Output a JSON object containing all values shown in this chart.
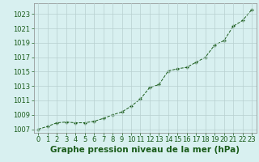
{
  "hours": [
    0,
    1,
    2,
    3,
    4,
    5,
    6,
    7,
    8,
    9,
    10,
    11,
    12,
    13,
    14,
    15,
    16,
    17,
    18,
    19,
    20,
    21,
    22,
    23
  ],
  "pressure": [
    1007.0,
    1007.4,
    1007.9,
    1008.0,
    1007.9,
    1007.9,
    1008.1,
    1008.5,
    1009.0,
    1009.4,
    1010.2,
    1011.2,
    1012.8,
    1013.2,
    1015.1,
    1015.4,
    1015.6,
    1016.3,
    1017.0,
    1018.7,
    1019.3,
    1021.3,
    1022.1,
    1023.6
  ],
  "ylim_min": 1006.5,
  "ylim_max": 1024.5,
  "yticks": [
    1007,
    1009,
    1011,
    1013,
    1015,
    1017,
    1019,
    1021,
    1023
  ],
  "xticks": [
    0,
    1,
    2,
    3,
    4,
    5,
    6,
    7,
    8,
    9,
    10,
    11,
    12,
    13,
    14,
    15,
    16,
    17,
    18,
    19,
    20,
    21,
    22,
    23
  ],
  "line_color": "#1a5c1a",
  "marker_color": "#1a5c1a",
  "bg_color": "#d8f0f0",
  "grid_color": "#b8d0d0",
  "xlabel": "Graphe pression niveau de la mer (hPa)",
  "xlabel_color": "#1a5c1a",
  "tick_color": "#1a5c1a",
  "spine_color": "#888888",
  "label_fontsize": 7.5,
  "tick_fontsize": 6.0
}
